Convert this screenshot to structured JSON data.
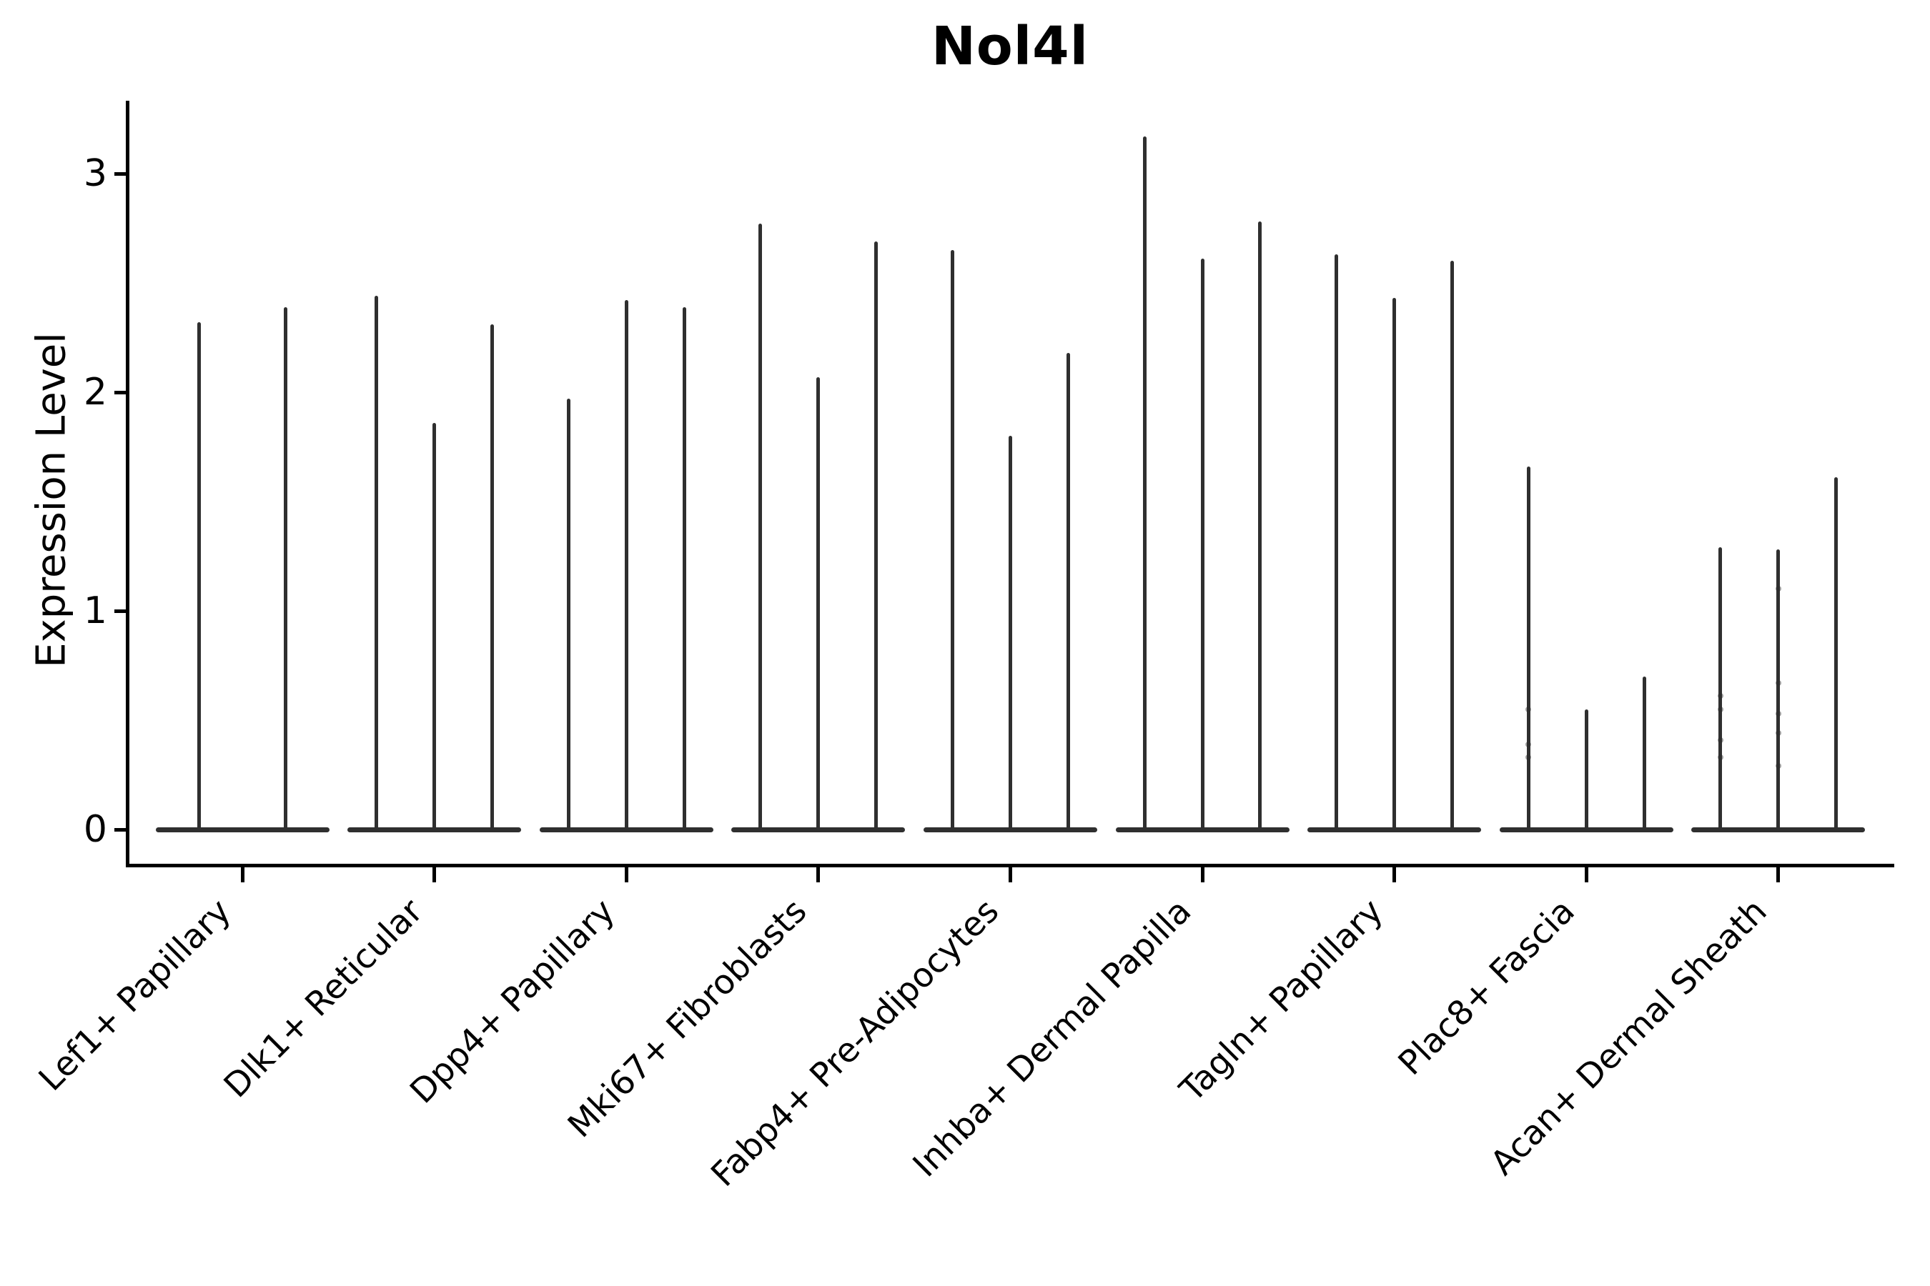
{
  "page": {
    "background_color": "#ffffff",
    "text_color": "#000000",
    "axis_color": "#000000",
    "violin_color": "#2f2f2f"
  },
  "chart_data": {
    "type": "violin",
    "title": "Nol4l",
    "ylabel": "Expression Level",
    "xlabel": "",
    "legend": "none",
    "grid": false,
    "yticks": [
      0,
      1,
      2,
      3
    ],
    "ylim": [
      -0.16,
      3.35
    ],
    "layout_hint": "Each category holds 2-3 stacked-at-zero violins collapsed to thin vertical spikes; bulk of density is a flat bar at y=0; spike top marks the maximum expression value.",
    "groups": [
      {
        "label": "Lef1+ Papillary",
        "spike_max_values": [
          2.32,
          2.39
        ],
        "jitter_dots": [
          [],
          []
        ]
      },
      {
        "label": "Dlk1+ Reticular",
        "spike_max_values": [
          2.44,
          1.86,
          2.31
        ],
        "jitter_dots": [
          [],
          [],
          []
        ]
      },
      {
        "label": "Dpp4+ Papillary",
        "spike_max_values": [
          1.97,
          2.42,
          2.39
        ],
        "jitter_dots": [
          [],
          [],
          []
        ]
      },
      {
        "label": "Mki67+ Fibroblasts",
        "spike_max_values": [
          2.77,
          2.07,
          2.69
        ],
        "jitter_dots": [
          [],
          [],
          []
        ]
      },
      {
        "label": "Fabp4+ Pre-Adipocytes",
        "spike_max_values": [
          2.65,
          1.8,
          2.18
        ],
        "jitter_dots": [
          [],
          [],
          []
        ]
      },
      {
        "label": "Inhba+ Dermal Papilla",
        "spike_max_values": [
          3.17,
          2.61,
          2.78
        ],
        "jitter_dots": [
          [],
          [],
          []
        ]
      },
      {
        "label": "Tagln+ Papillary",
        "spike_max_values": [
          2.63,
          2.43,
          2.6
        ],
        "jitter_dots": [
          [],
          [],
          []
        ]
      },
      {
        "label": "Plac8+ Fascia",
        "spike_max_values": [
          1.66,
          0.55,
          0.7
        ],
        "jitter_dots": [
          [
            0.33,
            0.39,
            0.55
          ],
          [],
          []
        ]
      },
      {
        "label": "Acan+ Dermal Sheath",
        "spike_max_values": [
          1.29,
          1.28,
          1.61
        ],
        "jitter_dots": [
          [
            0.33,
            0.41,
            0.55,
            0.61
          ],
          [
            0.29,
            0.44,
            0.53,
            0.67,
            1.1
          ],
          []
        ]
      }
    ]
  }
}
